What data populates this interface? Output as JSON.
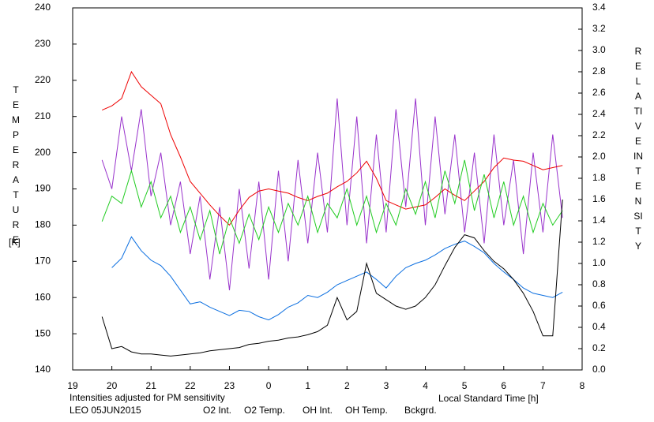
{
  "chart_data": {
    "type": "line",
    "x_label": "Local Standard Time [h]",
    "y_label": "TEMPERATURE",
    "y_unit": "[K]",
    "y2_label": "RELATIVE INTENSITY",
    "note": "Intensities adjusted for PM sensitivity",
    "note_color": "#22cc22",
    "caption": "LEO 05JUN2015",
    "x": [
      19.75,
      20,
      20.25,
      20.5,
      20.75,
      21,
      21.25,
      21.5,
      21.75,
      22,
      22.25,
      22.5,
      22.75,
      23,
      23.25,
      23.5,
      23.75,
      24,
      24.25,
      24.5,
      24.75,
      25,
      25.25,
      25.5,
      25.75,
      26,
      26.25,
      26.5,
      26.75,
      27,
      27.25,
      27.5,
      27.75,
      28,
      28.25,
      28.5,
      28.75,
      29,
      29.25,
      29.5,
      29.75,
      30,
      30.25,
      30.5,
      30.75,
      31,
      31.25,
      31.5
    ],
    "xlim": [
      19,
      32
    ],
    "xticks": [
      19,
      20,
      21,
      22,
      23,
      {
        "value": 24,
        "label": "0"
      },
      {
        "value": 25,
        "label": "1"
      },
      {
        "value": 26,
        "label": "2"
      },
      {
        "value": 27,
        "label": "3"
      },
      {
        "value": 28,
        "label": "4"
      },
      {
        "value": 29,
        "label": "5"
      },
      {
        "value": 30,
        "label": "6"
      },
      {
        "value": 31,
        "label": "7"
      },
      {
        "value": 32,
        "label": "8"
      }
    ],
    "ylim": [
      140,
      240
    ],
    "yticks": [
      140,
      150,
      160,
      170,
      180,
      190,
      200,
      210,
      220,
      230,
      240
    ],
    "y2lim": [
      0,
      3.4
    ],
    "y2ticks": [
      {
        "value": 0,
        "label": "0.0"
      },
      0.2,
      0.4,
      0.6,
      0.8,
      {
        "value": 1,
        "label": "1.0"
      },
      1.2,
      1.4,
      1.6,
      1.8,
      {
        "value": 2,
        "label": "2.0"
      },
      2.2,
      2.4,
      2.6,
      2.8,
      {
        "value": 3,
        "label": "3.0"
      },
      3.2,
      3.4
    ],
    "series": [
      {
        "name": "O2 Int.",
        "color": "#0a6ee0",
        "axis": "y2",
        "values": [
          null,
          0.96,
          1.05,
          1.25,
          1.12,
          1.03,
          0.98,
          0.88,
          0.75,
          0.62,
          0.64,
          0.59,
          0.55,
          0.51,
          0.56,
          0.55,
          0.5,
          0.47,
          0.52,
          0.59,
          0.63,
          0.7,
          0.68,
          0.73,
          0.8,
          0.84,
          0.88,
          0.92,
          0.85,
          0.77,
          0.88,
          0.96,
          1.0,
          1.03,
          1.08,
          1.14,
          1.18,
          1.21,
          1.16,
          1.1,
          1.0,
          0.92,
          0.85,
          0.77,
          0.72,
          0.7,
          0.68,
          0.73
        ]
      },
      {
        "name": "O2 Temp.",
        "color": "#9933cc",
        "axis": "y",
        "values": [
          198,
          190,
          210,
          195,
          212,
          188,
          200,
          180,
          192,
          172,
          188,
          165,
          185,
          162,
          190,
          168,
          192,
          165,
          195,
          170,
          198,
          175,
          200,
          178,
          215,
          180,
          210,
          175,
          205,
          178,
          212,
          185,
          215,
          180,
          210,
          183,
          205,
          178,
          200,
          175,
          205,
          180,
          198,
          172,
          200,
          178,
          205,
          182
        ]
      },
      {
        "name": "OH Int.",
        "color": "#ee0000",
        "axis": "y2",
        "values": [
          2.44,
          2.48,
          2.55,
          2.8,
          2.66,
          2.58,
          2.5,
          2.21,
          2.0,
          1.77,
          1.66,
          1.55,
          1.45,
          1.36,
          1.5,
          1.62,
          1.68,
          1.7,
          1.68,
          1.66,
          1.62,
          1.59,
          1.63,
          1.66,
          1.72,
          1.77,
          1.85,
          1.96,
          1.8,
          1.59,
          1.55,
          1.51,
          1.53,
          1.55,
          1.62,
          1.7,
          1.64,
          1.59,
          1.68,
          1.77,
          1.9,
          1.99,
          1.97,
          1.96,
          1.92,
          1.88,
          1.9,
          1.92
        ]
      },
      {
        "name": "OH Temp.",
        "color": "#22cc22",
        "axis": "y",
        "values": [
          181,
          188,
          186,
          195,
          185,
          192,
          182,
          188,
          178,
          185,
          176,
          184,
          172,
          182,
          175,
          183,
          176,
          185,
          178,
          186,
          180,
          188,
          178,
          186,
          182,
          190,
          180,
          188,
          178,
          186,
          180,
          190,
          183,
          192,
          182,
          195,
          186,
          198,
          184,
          194,
          182,
          192,
          180,
          188,
          178,
          186,
          180,
          184
        ]
      },
      {
        "name": "Bckgrd.",
        "color": "#000000",
        "axis": "y2",
        "values": [
          0.5,
          0.2,
          0.22,
          0.17,
          0.15,
          0.15,
          0.14,
          0.13,
          0.14,
          0.15,
          0.16,
          0.18,
          0.19,
          0.2,
          0.21,
          0.24,
          0.25,
          0.27,
          0.28,
          0.3,
          0.31,
          0.33,
          0.36,
          0.42,
          0.68,
          0.47,
          0.55,
          1.0,
          0.72,
          0.66,
          0.6,
          0.57,
          0.6,
          0.68,
          0.8,
          0.98,
          1.15,
          1.27,
          1.24,
          1.12,
          1.02,
          0.95,
          0.85,
          0.72,
          0.55,
          0.32,
          0.32,
          1.6
        ]
      }
    ]
  }
}
